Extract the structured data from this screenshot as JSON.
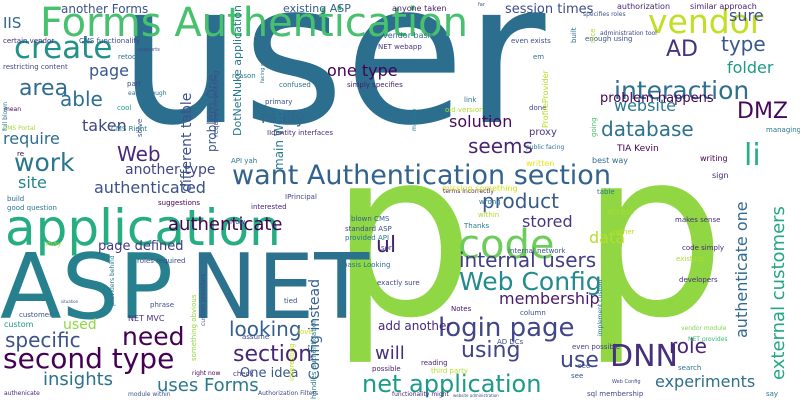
{
  "words": [
    {
      "text": "user",
      "color": "#2c6e8e"
    },
    {
      "text": "p",
      "color": "#8fd744"
    },
    {
      "text": "p",
      "color": "#90d743"
    },
    {
      "text": "ASP",
      "color": "#27808e"
    },
    {
      "text": "NET",
      "color": "#2c718e"
    },
    {
      "text": "Forms Authentication",
      "color": "#48c16e"
    },
    {
      "text": "application",
      "color": "#26ad81"
    },
    {
      "text": "want Authentication section",
      "color": "#33638d"
    },
    {
      "text": "code",
      "color": "#6ccd5a"
    },
    {
      "text": "second type",
      "color": "#440154"
    },
    {
      "text": "login page",
      "color": "#404688"
    },
    {
      "text": "Web Config",
      "color": "#238a8d"
    },
    {
      "text": "DNN",
      "color": "#472f7d"
    },
    {
      "text": "net application",
      "color": "#1f9a8a"
    },
    {
      "text": "IIS",
      "color": "#31688e"
    },
    {
      "text": "create",
      "color": "#21918c"
    },
    {
      "text": "vendor",
      "color": "#c0df25"
    },
    {
      "text": "AD",
      "color": "#46337e"
    },
    {
      "text": "type",
      "color": "#38588c"
    },
    {
      "text": "folder",
      "color": "#1e9b8a"
    },
    {
      "text": "interaction",
      "color": "#2d718e"
    },
    {
      "text": "DMZ",
      "color": "#46075a"
    },
    {
      "text": "li",
      "color": "#29af7f"
    },
    {
      "text": "sure",
      "color": "#3b528b"
    },
    {
      "text": "one type",
      "color": "#440154"
    },
    {
      "text": "page",
      "color": "#39568c"
    },
    {
      "text": "website",
      "color": "#2a788e"
    },
    {
      "text": "database",
      "color": "#2c728e"
    },
    {
      "text": "solution",
      "color": "#460b5e"
    },
    {
      "text": "seems",
      "color": "#482475"
    },
    {
      "text": "work",
      "color": "#2a768e"
    },
    {
      "text": "Web",
      "color": "#482979"
    },
    {
      "text": "site",
      "color": "#25838e"
    },
    {
      "text": "able",
      "color": "#2e6f8e"
    },
    {
      "text": "area",
      "color": "#2f6b8e"
    },
    {
      "text": "really",
      "color": "#31678e"
    },
    {
      "text": "taken",
      "color": "#404688"
    },
    {
      "text": "require",
      "color": "#2e6e8e"
    },
    {
      "text": "authenticated",
      "color": "#3c508b"
    },
    {
      "text": "another type",
      "color": "#3f4788"
    },
    {
      "text": "product",
      "color": "#375a8c"
    },
    {
      "text": "stored",
      "color": "#453781"
    },
    {
      "text": "authenticate",
      "color": "#440154"
    },
    {
      "text": "page defined",
      "color": "#443a83"
    },
    {
      "text": "data",
      "color": "#b5de2b"
    },
    {
      "text": "ul",
      "color": "#482071"
    },
    {
      "text": "internal users",
      "color": "#433e85"
    },
    {
      "text": "membership",
      "color": "#481b6d"
    },
    {
      "text": "looking",
      "color": "#355f8d"
    },
    {
      "text": "need",
      "color": "#440154"
    },
    {
      "text": "section",
      "color": "#482576"
    },
    {
      "text": "specific",
      "color": "#3b518b"
    },
    {
      "text": "used",
      "color": "#90d743"
    },
    {
      "text": "will",
      "color": "#472e7c"
    },
    {
      "text": "using",
      "color": "#414487"
    },
    {
      "text": "use",
      "color": "#3e4989"
    },
    {
      "text": "role",
      "color": "#482475"
    },
    {
      "text": "insights",
      "color": "#2c728e"
    },
    {
      "text": "uses Forms",
      "color": "#2a788e"
    },
    {
      "text": "external customers",
      "color": "#22a785"
    },
    {
      "text": "authenticate one",
      "color": "#31688e"
    },
    {
      "text": "experiments",
      "color": "#2e6e8e"
    },
    {
      "text": "problem happens",
      "color": "#440154"
    },
    {
      "text": "One idea",
      "color": "#39568c"
    },
    {
      "text": "different table",
      "color": "#3b528b"
    },
    {
      "text": "main Web",
      "color": "#2a788e"
    },
    {
      "text": "Config instead",
      "color": "#34618d"
    },
    {
      "text": "add another",
      "color": "#482878"
    },
    {
      "text": "another Forms",
      "color": "#3b528b"
    },
    {
      "text": "problem One",
      "color": "#39568c"
    },
    {
      "text": "NET webapp",
      "color": "#46327e"
    },
    {
      "text": "session times",
      "color": "#3e4c8a"
    },
    {
      "text": "vendor basis",
      "color": "#31688e"
    },
    {
      "text": "existing ASP",
      "color": "#355e8d"
    },
    {
      "text": "anyone taken",
      "color": "#482173"
    },
    {
      "text": "authorization",
      "color": "#482878"
    },
    {
      "text": "similar approach",
      "color": "#481d6f"
    },
    {
      "text": "certain vendor",
      "color": "#472d7b"
    },
    {
      "text": "restricting content",
      "color": "#3f4889"
    },
    {
      "text": "CMS functionality",
      "color": "#3e4a89"
    },
    {
      "text": "DotNetNuke application",
      "color": "#2a788e"
    },
    {
      "text": "requires restricting",
      "color": "#3e4c8a"
    },
    {
      "text": "TIA Kevin",
      "color": "#440154"
    },
    {
      "text": "proxy",
      "color": "#453781"
    },
    {
      "text": "NET MVC",
      "color": "#46307e"
    },
    {
      "text": "handles authentication",
      "color": "#2a778e"
    },
    {
      "text": "AD DCs",
      "color": "#3d4d8a"
    },
    {
      "text": "sql membership",
      "color": "#3e4a89"
    },
    {
      "text": "blown CMS",
      "color": "#365c8d"
    },
    {
      "text": "standard ASP",
      "color": "#3e4989"
    },
    {
      "text": "provided API",
      "color": "#2a788e"
    },
    {
      "text": "internal network",
      "color": "#3a548c"
    },
    {
      "text": "makes sense",
      "color": "#472d7b"
    },
    {
      "text": "code simply",
      "color": "#482677"
    },
    {
      "text": "exactly sure",
      "color": "#3f4788"
    },
    {
      "text": "developers",
      "color": "#472f7d"
    },
    {
      "text": "terms incorrectly",
      "color": "#481b6d"
    },
    {
      "text": "good question",
      "color": "#2a788e"
    },
    {
      "text": "IIdentity interfaces",
      "color": "#472c7a"
    },
    {
      "text": "Authorization Filters",
      "color": "#3f4788"
    },
    {
      "text": "functionality might",
      "color": "#482576"
    },
    {
      "text": "module within",
      "color": "#3b528b"
    },
    {
      "text": "website administration",
      "color": "#3e4a89"
    },
    {
      "text": "authenicate",
      "color": "#482677"
    },
    {
      "text": "IPrincipal",
      "color": "#414487"
    },
    {
      "text": "interested",
      "color": "#482576"
    },
    {
      "text": "suggestions",
      "color": "#440154"
    },
    {
      "text": "Notes",
      "color": "#471164"
    },
    {
      "text": "reading",
      "color": "#481f70"
    },
    {
      "text": "possible",
      "color": "#482173"
    },
    {
      "text": "third party",
      "color": "#b8de29"
    },
    {
      "text": "even possible",
      "color": "#433e85"
    },
    {
      "text": "missing something",
      "color": "#d2e21b"
    },
    {
      "text": "written",
      "color": "#e5e419"
    },
    {
      "text": "best way",
      "color": "#2f6c8e"
    },
    {
      "text": "writing",
      "color": "#440154"
    },
    {
      "text": "sign",
      "color": "#472a7a"
    },
    {
      "text": "access",
      "color": "#aadc32"
    },
    {
      "text": "rather",
      "color": "#bddf26"
    },
    {
      "text": "existing",
      "color": "#addc30"
    },
    {
      "text": "search",
      "color": "#2c718e"
    },
    {
      "text": "vendor module",
      "color": "#7fd34e"
    },
    {
      "text": "NET provides",
      "color": "#38b977"
    },
    {
      "text": "confused",
      "color": "#2d708e"
    },
    {
      "text": "primary",
      "color": "#3d4e8a"
    },
    {
      "text": "link",
      "color": "#2a778e"
    },
    {
      "text": "old version",
      "color": "#b0dd2f"
    },
    {
      "text": "done",
      "color": "#3e4989"
    },
    {
      "text": "within",
      "color": "#addc30"
    },
    {
      "text": "Thanks",
      "color": "#2a788e"
    },
    {
      "text": "wrong",
      "color": "#2e6f8e"
    },
    {
      "text": "sort",
      "color": "#3e4c8a"
    },
    {
      "text": "basis Looking",
      "color": "#2c718e"
    },
    {
      "text": "tied",
      "color": "#3b528b"
    },
    {
      "text": "column",
      "color": "#3c4f8a"
    },
    {
      "text": "love",
      "color": "#cde11d"
    },
    {
      "text": "check",
      "color": "#46327e"
    },
    {
      "text": "assume",
      "color": "#3f4788"
    },
    {
      "text": "interesting",
      "color": "#c5e021"
    },
    {
      "text": "custom",
      "color": "#1f988b"
    },
    {
      "text": "customer",
      "color": "#3b528b"
    },
    {
      "text": "phrase",
      "color": "#3b528b"
    },
    {
      "text": "roles required",
      "color": "#3e4a89"
    },
    {
      "text": "cool",
      "color": "#20a386"
    },
    {
      "text": "retool",
      "color": "#2c728e"
    },
    {
      "text": "CMS Right",
      "color": "#2a788e"
    },
    {
      "text": "CMS Portal",
      "color": "#a0da39"
    },
    {
      "text": "build",
      "color": "#2e6e8e"
    },
    {
      "text": "re",
      "color": "#440154"
    },
    {
      "text": "Now",
      "color": "#3e4a89"
    },
    {
      "text": "may",
      "color": "#addc30"
    },
    {
      "text": "API yah",
      "color": "#2a788e"
    },
    {
      "text": "em",
      "color": "#2d718e"
    },
    {
      "text": "mean",
      "color": "#440154"
    },
    {
      "text": "part",
      "color": "#3e4a89"
    },
    {
      "text": "easy enough",
      "color": "#2c718e"
    },
    {
      "text": "simply specifies",
      "color": "#482071"
    },
    {
      "text": "even exists",
      "color": "#3e4a89"
    },
    {
      "text": "enough using",
      "color": "#3b528b"
    },
    {
      "text": "administration tool",
      "color": "#3e4a89"
    },
    {
      "text": "specifies roles",
      "color": "#3b528b"
    },
    {
      "text": "going",
      "color": "#4ac16d"
    },
    {
      "text": "public facing",
      "color": "#2c718e"
    },
    {
      "text": "managing",
      "color": "#2a788e"
    },
    {
      "text": "ProfileProvider",
      "color": "#b5de2b"
    },
    {
      "text": "module",
      "color": "#2a788e"
    },
    {
      "text": "solve",
      "color": "#3b528b"
    },
    {
      "text": "full blown",
      "color": "#2a788e"
    },
    {
      "text": "nice",
      "color": "#addc30"
    },
    {
      "text": "built",
      "color": "#2e6e8e"
    },
    {
      "text": "table",
      "color": "#2a788e"
    },
    {
      "text": "implement custom",
      "color": "#2c718e"
    },
    {
      "text": "providers behind",
      "color": "#2a788e"
    },
    {
      "text": "custom providers",
      "color": "#3e4a89"
    },
    {
      "text": "something obvious",
      "color": "#90d743"
    },
    {
      "text": "right now",
      "color": "#440154"
    },
    {
      "text": "situation",
      "color": "#3b528b"
    },
    {
      "text": "facing website",
      "color": "#2c718e"
    },
    {
      "text": "reason",
      "color": "#2a788e"
    },
    {
      "text": "far",
      "color": "#3e4a89"
    },
    {
      "text": "say",
      "color": "#2c718e"
    },
    {
      "text": "see",
      "color": "#3b528b"
    },
    {
      "text": "supports",
      "color": "#3e4a89"
    },
    {
      "text": "Web Config",
      "color": "#3e4a89"
    },
    {
      "text": "see",
      "color": "#3e4a89"
    }
  ]
}
